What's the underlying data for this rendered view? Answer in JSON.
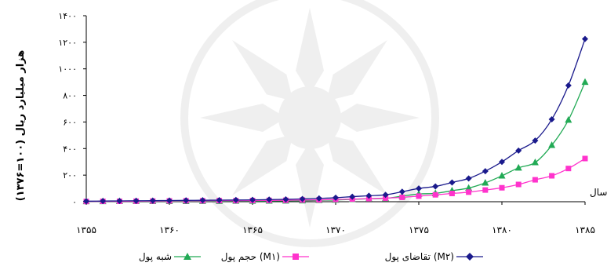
{
  "chart_data": {
    "type": "line",
    "title": "",
    "ylabel": "هزار میلیارد ریال (۱۰۰=۱۳۷۶)",
    "xlabel": "سال",
    "x": [
      1355,
      1356,
      1357,
      1358,
      1359,
      1360,
      1361,
      1362,
      1363,
      1364,
      1365,
      1366,
      1367,
      1368,
      1369,
      1370,
      1371,
      1372,
      1373,
      1374,
      1375,
      1376,
      1377,
      1378,
      1379,
      1380,
      1381,
      1382,
      1383,
      1384,
      1385
    ],
    "xlim": [
      1355,
      1385
    ],
    "ylim": [
      0,
      1400
    ],
    "x_ticks": [
      1355,
      1360,
      1365,
      1370,
      1375,
      1380,
      1385
    ],
    "x_tick_labels": [
      "۱۳۵۵",
      "۱۳۶۰",
      "۱۳۶۵",
      "۱۳۷۰",
      "۱۳۷۵",
      "۱۳۸۰",
      "۱۳۸۵"
    ],
    "y_ticks": [
      0,
      200,
      400,
      600,
      800,
      1000,
      1200,
      1400
    ],
    "y_tick_labels": [
      "۰",
      "۲۰۰",
      "۴۰۰",
      "۶۰۰",
      "۸۰۰",
      "۱۰۰۰",
      "۱۲۰۰",
      "۱۴۰۰"
    ],
    "grid": false,
    "legend_position": "bottom",
    "series": [
      {
        "name": "تقاضای پول (M۲)",
        "color": "#1a1a8c",
        "marker": "diamond",
        "values": [
          4,
          5,
          6,
          7,
          8,
          9,
          10,
          11,
          12,
          13,
          14,
          16,
          18,
          21,
          25,
          30,
          38,
          45,
          52,
          75,
          100,
          115,
          145,
          175,
          230,
          300,
          385,
          460,
          620,
          875,
          1225
        ]
      },
      {
        "name": "حجم پول (M۱)",
        "color": "#ff33cc",
        "marker": "square",
        "values": [
          2,
          3,
          3,
          4,
          5,
          6,
          7,
          7,
          8,
          8,
          9,
          10,
          11,
          13,
          14,
          17,
          20,
          23,
          27,
          33,
          42,
          52,
          62,
          72,
          88,
          105,
          130,
          165,
          195,
          250,
          325
        ]
      },
      {
        "name": "شبه پول",
        "color": "#22aa55",
        "marker": "triangle",
        "values": [
          2,
          2,
          3,
          3,
          3,
          3,
          3,
          4,
          4,
          5,
          5,
          6,
          7,
          8,
          11,
          13,
          18,
          22,
          25,
          42,
          58,
          63,
          83,
          103,
          142,
          195,
          255,
          295,
          425,
          615,
          900
        ]
      }
    ]
  }
}
